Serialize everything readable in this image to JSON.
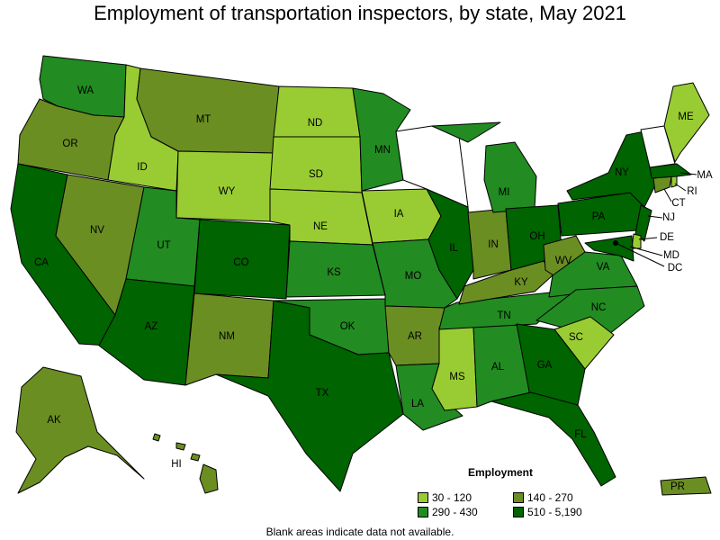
{
  "title": "Employment of transportation inspectors, by state, May 2021",
  "note": "Blank areas indicate data not available.",
  "legend": {
    "title": "Employment",
    "items": [
      {
        "label": "30 - 120",
        "color": "#99cc33"
      },
      {
        "label": "140 - 270",
        "color": "#6b8e23"
      },
      {
        "label": "290 - 430",
        "color": "#228b22"
      },
      {
        "label": "510 - 5,190",
        "color": "#006400"
      }
    ]
  },
  "states": {
    "WA": "WA",
    "OR": "OR",
    "CA": "CA",
    "ID": "ID",
    "NV": "NV",
    "MT": "MT",
    "WY": "WY",
    "UT": "UT",
    "AZ": "AZ",
    "CO": "CO",
    "NM": "NM",
    "ND": "ND",
    "SD": "SD",
    "NE": "NE",
    "KS": "KS",
    "OK": "OK",
    "TX": "TX",
    "MN": "MN",
    "IA": "IA",
    "MO": "MO",
    "AR": "AR",
    "LA": "LA",
    "IL": "IL",
    "MS": "MS",
    "AL": "AL",
    "TN": "TN",
    "IN": "IN",
    "KY": "KY",
    "MI": "MI",
    "OH": "OH",
    "WV": "WV",
    "VA": "VA",
    "NC": "NC",
    "SC": "SC",
    "GA": "GA",
    "FL": "FL",
    "PA": "PA",
    "NY": "NY",
    "ME": "ME",
    "MA": "MA",
    "RI": "RI",
    "CT": "CT",
    "NJ": "NJ",
    "DE": "DE",
    "MD": "MD",
    "DC": "DC",
    "AK": "AK",
    "HI": "HI",
    "PR": "PR"
  }
}
